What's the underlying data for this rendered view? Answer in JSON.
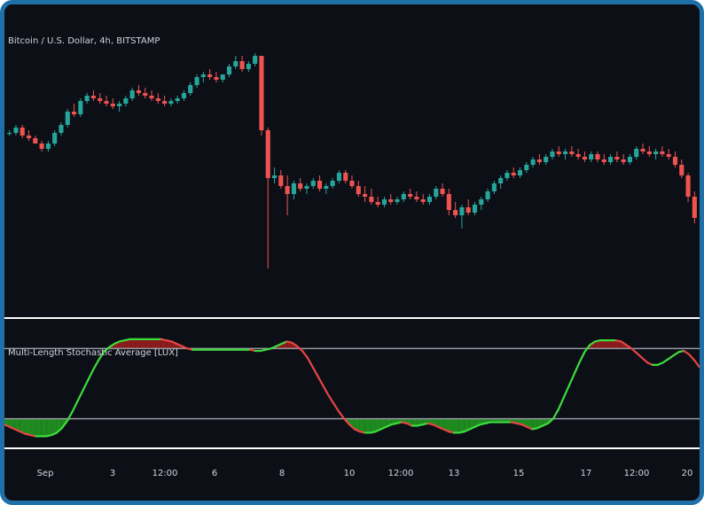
{
  "colors": {
    "background": "#0d0f17",
    "frame": "#1f6fa8",
    "up": "#26a69a",
    "down": "#ef5350",
    "osc_up": "#3ddc3d",
    "osc_down": "#e84545",
    "fill_bull": "#1f8a1f",
    "fill_bear": "#8b1c1c",
    "divider": "#ffffff",
    "level": "#9598a1"
  },
  "price_pane": {
    "title": "Bitcoin / U.S. Dollar, 4h, BITSTAMP"
  },
  "osc_pane": {
    "title": "Multi-Length Stochastic Average [LUX]"
  },
  "x_axis": {
    "labels": [
      "Sep",
      "3",
      "12:00",
      "6",
      "8",
      "10",
      "12:00",
      "13",
      "15",
      "17",
      "12:00",
      "20"
    ]
  },
  "chart_data": [
    {
      "type": "candlestick",
      "title": "Bitcoin / U.S. Dollar, 4h, BITSTAMP",
      "ylim": [
        0,
        100
      ],
      "candles": [
        [
          61,
          62,
          60,
          61
        ],
        [
          61,
          64,
          60,
          63
        ],
        [
          63,
          64,
          59,
          60
        ],
        [
          60,
          62,
          58,
          59
        ],
        [
          59,
          60,
          57,
          57
        ],
        [
          57,
          58,
          54,
          55
        ],
        [
          55,
          58,
          54,
          57
        ],
        [
          57,
          62,
          56,
          61
        ],
        [
          61,
          65,
          60,
          64
        ],
        [
          64,
          70,
          63,
          69
        ],
        [
          69,
          72,
          67,
          68
        ],
        [
          68,
          74,
          67,
          73
        ],
        [
          73,
          76,
          72,
          75
        ],
        [
          75,
          77,
          73,
          74
        ],
        [
          74,
          76,
          72,
          73
        ],
        [
          73,
          75,
          71,
          72
        ],
        [
          72,
          74,
          70,
          71
        ],
        [
          71,
          73,
          69,
          72
        ],
        [
          72,
          75,
          71,
          74
        ],
        [
          74,
          78,
          73,
          77
        ],
        [
          77,
          79,
          75,
          76
        ],
        [
          76,
          78,
          74,
          75
        ],
        [
          75,
          77,
          73,
          74
        ],
        [
          74,
          76,
          72,
          73
        ],
        [
          73,
          75,
          71,
          72
        ],
        [
          72,
          74,
          71,
          73
        ],
        [
          73,
          75,
          72,
          74
        ],
        [
          74,
          77,
          73,
          76
        ],
        [
          76,
          80,
          75,
          79
        ],
        [
          79,
          83,
          78,
          82
        ],
        [
          82,
          84,
          80,
          83
        ],
        [
          83,
          85,
          81,
          82
        ],
        [
          82,
          84,
          80,
          81
        ],
        [
          81,
          83,
          80,
          83
        ],
        [
          83,
          87,
          82,
          86
        ],
        [
          86,
          90,
          85,
          88
        ],
        [
          88,
          90,
          84,
          85
        ],
        [
          85,
          88,
          84,
          87
        ],
        [
          87,
          91,
          86,
          90
        ],
        [
          90,
          90,
          60,
          62
        ],
        [
          62,
          63,
          10,
          44
        ],
        [
          44,
          48,
          42,
          45
        ],
        [
          45,
          47,
          40,
          41
        ],
        [
          41,
          45,
          30,
          38
        ],
        [
          38,
          43,
          36,
          42
        ],
        [
          42,
          44,
          39,
          40
        ],
        [
          40,
          42,
          38,
          41
        ],
        [
          41,
          44,
          40,
          43
        ],
        [
          43,
          45,
          39,
          40
        ],
        [
          40,
          42,
          38,
          41
        ],
        [
          41,
          44,
          40,
          43
        ],
        [
          43,
          47,
          42,
          46
        ],
        [
          46,
          47,
          42,
          43
        ],
        [
          43,
          45,
          40,
          41
        ],
        [
          41,
          43,
          37,
          38
        ],
        [
          38,
          41,
          35,
          37
        ],
        [
          37,
          40,
          34,
          35
        ],
        [
          35,
          37,
          33,
          34
        ],
        [
          34,
          37,
          33,
          36
        ],
        [
          36,
          38,
          34,
          35
        ],
        [
          35,
          37,
          34,
          36
        ],
        [
          36,
          39,
          35,
          38
        ],
        [
          38,
          40,
          36,
          37
        ],
        [
          37,
          39,
          35,
          36
        ],
        [
          36,
          38,
          34,
          35
        ],
        [
          35,
          38,
          34,
          37
        ],
        [
          37,
          41,
          36,
          40
        ],
        [
          40,
          42,
          37,
          38
        ],
        [
          38,
          40,
          30,
          32
        ],
        [
          32,
          35,
          29,
          30
        ],
        [
          30,
          34,
          25,
          33
        ],
        [
          33,
          36,
          30,
          31
        ],
        [
          31,
          35,
          30,
          34
        ],
        [
          34,
          37,
          32,
          36
        ],
        [
          36,
          40,
          35,
          39
        ],
        [
          39,
          43,
          38,
          42
        ],
        [
          42,
          45,
          40,
          44
        ],
        [
          44,
          47,
          43,
          46
        ],
        [
          46,
          48,
          44,
          45
        ],
        [
          45,
          48,
          44,
          47
        ],
        [
          47,
          50,
          46,
          49
        ],
        [
          49,
          52,
          48,
          51
        ],
        [
          51,
          53,
          49,
          50
        ],
        [
          50,
          53,
          49,
          52
        ],
        [
          52,
          55,
          51,
          54
        ],
        [
          54,
          56,
          52,
          53
        ],
        [
          53,
          55,
          51,
          54
        ],
        [
          54,
          56,
          52,
          53
        ],
        [
          53,
          55,
          51,
          52
        ],
        [
          52,
          54,
          50,
          51
        ],
        [
          51,
          54,
          50,
          53
        ],
        [
          53,
          54,
          50,
          51
        ],
        [
          51,
          53,
          49,
          50
        ],
        [
          50,
          53,
          49,
          52
        ],
        [
          52,
          54,
          50,
          51
        ],
        [
          51,
          53,
          49,
          50
        ],
        [
          50,
          53,
          49,
          52
        ],
        [
          52,
          56,
          51,
          55
        ],
        [
          55,
          57,
          53,
          54
        ],
        [
          54,
          56,
          52,
          53
        ],
        [
          53,
          55,
          51,
          54
        ],
        [
          54,
          56,
          52,
          53
        ],
        [
          53,
          55,
          51,
          52
        ],
        [
          52,
          54,
          48,
          49
        ],
        [
          49,
          51,
          44,
          45
        ],
        [
          45,
          46,
          35,
          37
        ],
        [
          37,
          39,
          27,
          29
        ]
      ]
    },
    {
      "type": "line",
      "title": "Multi-Length Stochastic Average [LUX]",
      "ylim": [
        0,
        100
      ],
      "levels": [
        80,
        20
      ],
      "values": [
        15,
        13,
        11,
        9,
        7,
        6,
        5,
        5,
        5,
        6,
        8,
        12,
        18,
        26,
        35,
        44,
        53,
        62,
        70,
        77,
        81,
        84,
        86,
        87,
        88,
        88,
        88,
        88,
        88,
        88,
        88,
        87,
        86,
        84,
        82,
        80,
        79,
        79,
        79,
        79,
        79,
        79,
        79,
        79,
        79,
        79,
        79,
        79,
        78,
        78,
        79,
        80,
        82,
        84,
        86,
        85,
        82,
        78,
        72,
        64,
        56,
        48,
        40,
        33,
        26,
        20,
        15,
        11,
        9,
        8,
        8,
        9,
        11,
        13,
        15,
        16,
        17,
        16,
        14,
        14,
        15,
        16,
        15,
        13,
        11,
        9,
        8,
        8,
        9,
        11,
        13,
        15,
        16,
        17,
        17,
        17,
        17,
        17,
        16,
        15,
        13,
        11,
        12,
        14,
        16,
        20,
        28,
        38,
        48,
        58,
        68,
        77,
        83,
        86,
        87,
        87,
        87,
        87,
        86,
        83,
        80,
        76,
        72,
        68,
        66,
        66,
        68,
        71,
        74,
        77,
        78,
        75,
        70,
        64
      ]
    }
  ]
}
